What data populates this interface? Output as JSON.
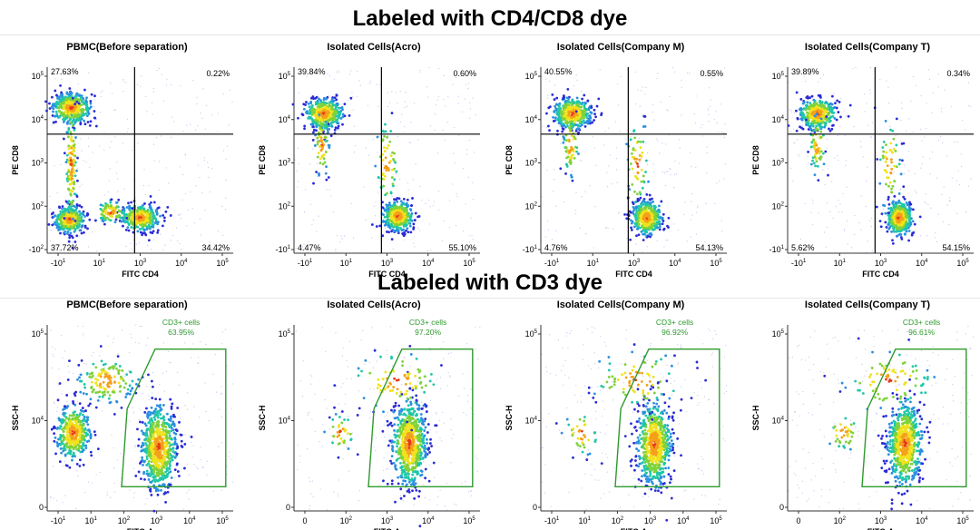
{
  "sections": {
    "top_title": "Labeled with CD4/CD8 dye",
    "bottom_title": "Labeled with CD3 dye"
  },
  "colors": {
    "divider": "#000000",
    "gate": "#2e9a2e",
    "gate_label": "#2e9a2e",
    "density_scale": [
      "#2b2bd6",
      "#2a8fe0",
      "#1fc7a8",
      "#7fd23a",
      "#f0e21c",
      "#f5a01a",
      "#e63a1a"
    ]
  },
  "chart_data": [
    {
      "id": "cd4cd8-pbmc",
      "type": "scatter",
      "title": "PBMC(Before separation)",
      "xlabel": "FITC CD4",
      "ylabel": "PE CD8",
      "xticks": [
        {
          "label": "-10",
          "sup": "1"
        },
        {
          "label": "10",
          "sup": "1"
        },
        {
          "label": "10",
          "sup": "3"
        },
        {
          "label": "10",
          "sup": "4"
        },
        {
          "label": "10",
          "sup": "5"
        }
      ],
      "yticks": [
        {
          "label": "10",
          "sup": "5"
        },
        {
          "label": "10",
          "sup": "4"
        },
        {
          "label": "10",
          "sup": "3"
        },
        {
          "label": "10",
          "sup": "2"
        },
        {
          "label": "-10",
          "sup": "2"
        }
      ],
      "quadrants": {
        "upper_left": "27.63%",
        "upper_right": "0.22%",
        "lower_left": "37.72%",
        "lower_right": "34.42%"
      }
    },
    {
      "id": "cd4cd8-acro",
      "type": "scatter",
      "title": "Isolated Cells(Acro)",
      "xlabel": "FITC CD4",
      "ylabel": "PE CD8",
      "xticks": [
        {
          "label": "-10",
          "sup": "1"
        },
        {
          "label": "10",
          "sup": "1"
        },
        {
          "label": "10",
          "sup": "3"
        },
        {
          "label": "10",
          "sup": "4"
        },
        {
          "label": "10",
          "sup": "5"
        }
      ],
      "yticks": [
        {
          "label": "10",
          "sup": "5"
        },
        {
          "label": "10",
          "sup": "4"
        },
        {
          "label": "10",
          "sup": "3"
        },
        {
          "label": "10",
          "sup": "2"
        },
        {
          "label": "-10",
          "sup": "1"
        }
      ],
      "quadrants": {
        "upper_left": "39.84%",
        "upper_right": "0.60%",
        "lower_left": "4.47%",
        "lower_right": "55.10%"
      }
    },
    {
      "id": "cd4cd8-company-m",
      "type": "scatter",
      "title": "Isolated Cells(Company M)",
      "xlabel": "FITC CD4",
      "ylabel": "PE CD8",
      "xticks": [
        {
          "label": "-10",
          "sup": "1"
        },
        {
          "label": "10",
          "sup": "1"
        },
        {
          "label": "10",
          "sup": "3"
        },
        {
          "label": "10",
          "sup": "4"
        },
        {
          "label": "10",
          "sup": "5"
        }
      ],
      "yticks": [
        {
          "label": "10",
          "sup": "5"
        },
        {
          "label": "10",
          "sup": "4"
        },
        {
          "label": "10",
          "sup": "3"
        },
        {
          "label": "10",
          "sup": "2"
        },
        {
          "label": "-10",
          "sup": "1"
        }
      ],
      "quadrants": {
        "upper_left": "40.55%",
        "upper_right": "0.55%",
        "lower_left": "4.76%",
        "lower_right": "54.13%"
      }
    },
    {
      "id": "cd4cd8-company-t",
      "type": "scatter",
      "title": "Isolated Cells(Company T)",
      "xlabel": "FITC CD4",
      "ylabel": "PE CD8",
      "xticks": [
        {
          "label": "-10",
          "sup": "1"
        },
        {
          "label": "10",
          "sup": "1"
        },
        {
          "label": "10",
          "sup": "3"
        },
        {
          "label": "10",
          "sup": "4"
        },
        {
          "label": "10",
          "sup": "5"
        }
      ],
      "yticks": [
        {
          "label": "10",
          "sup": "5"
        },
        {
          "label": "10",
          "sup": "4"
        },
        {
          "label": "10",
          "sup": "3"
        },
        {
          "label": "10",
          "sup": "2"
        },
        {
          "label": "-10",
          "sup": "1"
        }
      ],
      "quadrants": {
        "upper_left": "39.89%",
        "upper_right": "0.34%",
        "lower_left": "5.62%",
        "lower_right": "54.15%"
      }
    },
    {
      "id": "cd3-pbmc",
      "type": "scatter",
      "title": "PBMC(Before separation)",
      "xlabel": "FITC-A",
      "ylabel": "SSC-H",
      "xticks": [
        {
          "label": "-10",
          "sup": "1"
        },
        {
          "label": "10",
          "sup": "1"
        },
        {
          "label": "10",
          "sup": "2"
        },
        {
          "label": "10",
          "sup": "3"
        },
        {
          "label": "10",
          "sup": "4"
        },
        {
          "label": "10",
          "sup": "5"
        }
      ],
      "yticks": [
        {
          "label": "10",
          "sup": "5"
        },
        {
          "label": "10",
          "sup": "4"
        },
        {
          "label": "0",
          "sup": ""
        }
      ],
      "gate": {
        "label": "CD3+ cells",
        "value": "63.95%"
      }
    },
    {
      "id": "cd3-acro",
      "type": "scatter",
      "title": "Isolated Cells(Acro)",
      "xlabel": "FITC-A",
      "ylabel": "SSC-H",
      "xticks": [
        {
          "label": "0",
          "sup": ""
        },
        {
          "label": "10",
          "sup": "2"
        },
        {
          "label": "10",
          "sup": "3"
        },
        {
          "label": "10",
          "sup": "4"
        },
        {
          "label": "10",
          "sup": "5"
        }
      ],
      "yticks": [
        {
          "label": "10",
          "sup": "5"
        },
        {
          "label": "10",
          "sup": "4"
        },
        {
          "label": "0",
          "sup": ""
        }
      ],
      "gate": {
        "label": "CD3+ cells",
        "value": "97.20%"
      }
    },
    {
      "id": "cd3-company-m",
      "type": "scatter",
      "title": "Isolated Cells(Company M)",
      "xlabel": "FITC-A",
      "ylabel": "SSC-H",
      "xticks": [
        {
          "label": "-10",
          "sup": "1"
        },
        {
          "label": "10",
          "sup": "1"
        },
        {
          "label": "10",
          "sup": "2"
        },
        {
          "label": "10",
          "sup": "3"
        },
        {
          "label": "10",
          "sup": "4"
        },
        {
          "label": "10",
          "sup": "5"
        }
      ],
      "yticks": [
        {
          "label": "10",
          "sup": "5"
        },
        {
          "label": "10",
          "sup": "4"
        },
        {
          "label": "0",
          "sup": ""
        }
      ],
      "gate": {
        "label": "CD3+ cells",
        "value": "96.92%"
      }
    },
    {
      "id": "cd3-company-t",
      "type": "scatter",
      "title": "Isolated Cells(Company T)",
      "xlabel": "FITC-A",
      "ylabel": "SSC-H",
      "xticks": [
        {
          "label": "0",
          "sup": ""
        },
        {
          "label": "10",
          "sup": "2"
        },
        {
          "label": "10",
          "sup": "3"
        },
        {
          "label": "10",
          "sup": "4"
        },
        {
          "label": "10",
          "sup": "5"
        }
      ],
      "yticks": [
        {
          "label": "10",
          "sup": "5"
        },
        {
          "label": "10",
          "sup": "4"
        },
        {
          "label": "0",
          "sup": ""
        }
      ],
      "gate": {
        "label": "CD3+ cells",
        "value": "96.61%"
      }
    }
  ]
}
